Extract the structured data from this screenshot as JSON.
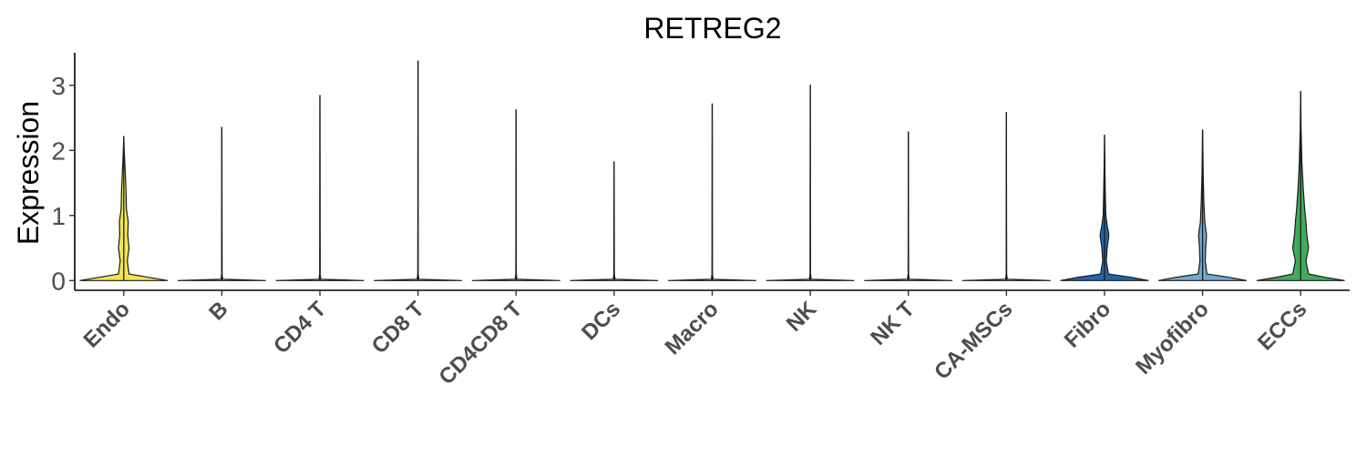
{
  "chart_data": {
    "type": "violin",
    "title": "RETREG2",
    "ylabel": "Expression",
    "xlabel": "",
    "ylim": [
      -0.15,
      3.5
    ],
    "yticks": [
      0,
      1,
      2,
      3
    ],
    "grid": false,
    "legend": "none",
    "categories": [
      "Endo",
      "B",
      "CD4 T",
      "CD8 T",
      "CD4CD8 T",
      "DCs",
      "Macro",
      "NK",
      "NK T",
      "CA-MSCs",
      "Fibro",
      "Myofibro",
      "ECCs"
    ],
    "colors": [
      "#f2e64f",
      "#ffffff",
      "#ffffff",
      "#ffffff",
      "#ffffff",
      "#ffffff",
      "#ffffff",
      "#ffffff",
      "#ffffff",
      "#ffffff",
      "#2166ac",
      "#74a9cf",
      "#41ab5d"
    ],
    "max_values": [
      2.22,
      2.36,
      2.85,
      3.38,
      2.63,
      1.83,
      2.72,
      3.01,
      2.29,
      2.59,
      2.24,
      2.32,
      2.91
    ],
    "density_profiles": [
      [
        [
          0,
          1.0
        ],
        [
          0.05,
          0.55
        ],
        [
          0.1,
          0.12
        ],
        [
          0.3,
          0.08
        ],
        [
          0.5,
          0.12
        ],
        [
          0.7,
          0.09
        ],
        [
          0.9,
          0.1
        ],
        [
          1.1,
          0.06
        ],
        [
          1.4,
          0.05
        ],
        [
          1.7,
          0.03
        ],
        [
          2.0,
          0.01
        ],
        [
          2.22,
          0.0
        ]
      ],
      [
        [
          0,
          1.0
        ],
        [
          0.02,
          0.02
        ],
        [
          0.1,
          0.005
        ],
        [
          2.36,
          0.0
        ]
      ],
      [
        [
          0,
          1.0
        ],
        [
          0.02,
          0.02
        ],
        [
          0.1,
          0.005
        ],
        [
          2.85,
          0.0
        ]
      ],
      [
        [
          0,
          1.0
        ],
        [
          0.02,
          0.02
        ],
        [
          0.1,
          0.005
        ],
        [
          3.38,
          0.0
        ]
      ],
      [
        [
          0,
          1.0
        ],
        [
          0.02,
          0.02
        ],
        [
          0.1,
          0.005
        ],
        [
          2.63,
          0.0
        ]
      ],
      [
        [
          0,
          1.0
        ],
        [
          0.02,
          0.02
        ],
        [
          0.1,
          0.005
        ],
        [
          1.83,
          0.0
        ]
      ],
      [
        [
          0,
          1.0
        ],
        [
          0.02,
          0.02
        ],
        [
          0.1,
          0.005
        ],
        [
          2.72,
          0.0
        ]
      ],
      [
        [
          0,
          1.0
        ],
        [
          0.02,
          0.02
        ],
        [
          0.1,
          0.005
        ],
        [
          3.01,
          0.0
        ]
      ],
      [
        [
          0,
          1.0
        ],
        [
          0.02,
          0.02
        ],
        [
          0.1,
          0.005
        ],
        [
          2.29,
          0.0
        ]
      ],
      [
        [
          0,
          1.0
        ],
        [
          0.02,
          0.02
        ],
        [
          0.1,
          0.005
        ],
        [
          2.59,
          0.0
        ]
      ],
      [
        [
          0,
          1.0
        ],
        [
          0.05,
          0.6
        ],
        [
          0.1,
          0.09
        ],
        [
          0.3,
          0.04
        ],
        [
          0.5,
          0.06
        ],
        [
          0.7,
          0.1
        ],
        [
          0.85,
          0.06
        ],
        [
          1.0,
          0.03
        ],
        [
          1.3,
          0.02
        ],
        [
          1.7,
          0.01
        ],
        [
          2.24,
          0.0
        ]
      ],
      [
        [
          0,
          1.0
        ],
        [
          0.05,
          0.6
        ],
        [
          0.1,
          0.1
        ],
        [
          0.3,
          0.06
        ],
        [
          0.5,
          0.07
        ],
        [
          0.7,
          0.09
        ],
        [
          0.9,
          0.05
        ],
        [
          1.2,
          0.03
        ],
        [
          1.6,
          0.015
        ],
        [
          2.32,
          0.0
        ]
      ],
      [
        [
          0,
          1.0
        ],
        [
          0.05,
          0.55
        ],
        [
          0.1,
          0.18
        ],
        [
          0.3,
          0.12
        ],
        [
          0.5,
          0.18
        ],
        [
          0.7,
          0.14
        ],
        [
          0.9,
          0.12
        ],
        [
          1.1,
          0.09
        ],
        [
          1.4,
          0.06
        ],
        [
          1.8,
          0.03
        ],
        [
          2.3,
          0.01
        ],
        [
          2.91,
          0.0
        ]
      ]
    ]
  }
}
